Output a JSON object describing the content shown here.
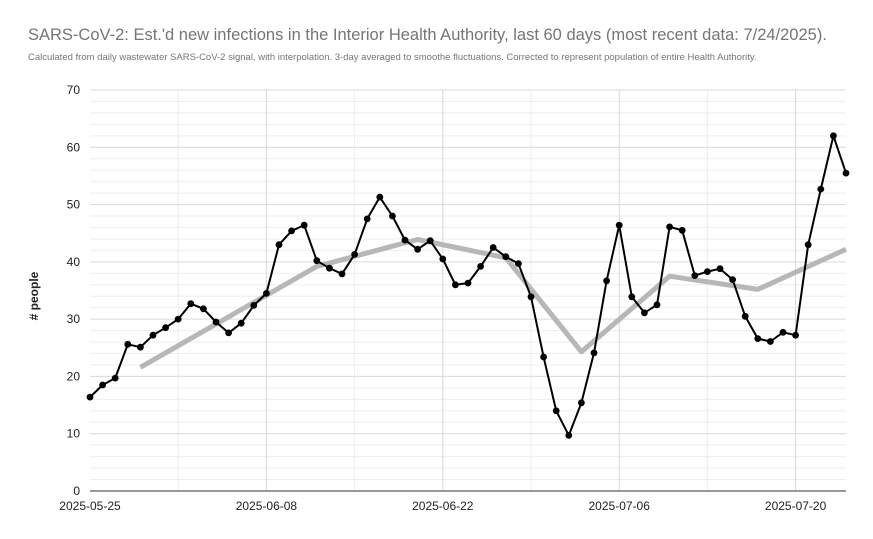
{
  "chart_data": {
    "type": "line",
    "title": "SARS-CoV-2: Est.'d new infections in the Interior Health Authority, last 60 days (most recent data: 7/24/2025).",
    "subtitle": "Calculated from daily wastewater SARS-CoV-2 signal, with interpolation. 3-day averaged to smoothe fluctuations. Corrected to represent population of entire Health Authority.",
    "ylabel": "# people",
    "xlabel": "",
    "ylim": [
      0,
      70
    ],
    "yticks": [
      0,
      10,
      20,
      30,
      40,
      50,
      60,
      70
    ],
    "xlim": [
      "2025-05-25",
      "2025-07-24"
    ],
    "xticks": [
      "2025-05-25",
      "2025-06-08",
      "2025-06-22",
      "2025-07-06",
      "2025-07-20"
    ],
    "grid": true,
    "colors": {
      "daily": "#000000",
      "trend": "#b7b7b7",
      "grid": "#d9d9d9"
    },
    "series": [
      {
        "style": "line-with-markers",
        "x": [
          "2025-05-25",
          "2025-05-26",
          "2025-05-27",
          "2025-05-28",
          "2025-05-29",
          "2025-05-30",
          "2025-05-31",
          "2025-06-01",
          "2025-06-02",
          "2025-06-03",
          "2025-06-04",
          "2025-06-05",
          "2025-06-06",
          "2025-06-07",
          "2025-06-08",
          "2025-06-09",
          "2025-06-10",
          "2025-06-11",
          "2025-06-12",
          "2025-06-13",
          "2025-06-14",
          "2025-06-15",
          "2025-06-16",
          "2025-06-17",
          "2025-06-18",
          "2025-06-19",
          "2025-06-20",
          "2025-06-21",
          "2025-06-22",
          "2025-06-23",
          "2025-06-24",
          "2025-06-25",
          "2025-06-26",
          "2025-06-27",
          "2025-06-28",
          "2025-06-29",
          "2025-06-30",
          "2025-07-01",
          "2025-07-02",
          "2025-07-03",
          "2025-07-04",
          "2025-07-05",
          "2025-07-06",
          "2025-07-07",
          "2025-07-08",
          "2025-07-09",
          "2025-07-10",
          "2025-07-11",
          "2025-07-12",
          "2025-07-13",
          "2025-07-14",
          "2025-07-15",
          "2025-07-16",
          "2025-07-17",
          "2025-07-18",
          "2025-07-19",
          "2025-07-20",
          "2025-07-21",
          "2025-07-22",
          "2025-07-23",
          "2025-07-24"
        ],
        "values": [
          16.4,
          18.5,
          19.7,
          25.6,
          25.1,
          27.2,
          28.5,
          30.0,
          32.7,
          31.8,
          29.5,
          27.6,
          29.3,
          32.4,
          34.5,
          43.0,
          45.4,
          46.4,
          40.2,
          38.9,
          37.9,
          41.3,
          47.5,
          51.3,
          48.0,
          43.8,
          42.2,
          43.7,
          40.5,
          36.0,
          36.3,
          39.2,
          42.5,
          40.9,
          39.7,
          33.9,
          23.4,
          14.0,
          9.7,
          15.4,
          24.1,
          36.7,
          46.4,
          33.9,
          31.1,
          32.5,
          46.1,
          45.5,
          37.6,
          38.3,
          38.8,
          36.9,
          30.5,
          26.6,
          26.1,
          27.7,
          27.2,
          43.0,
          52.7,
          62.0,
          55.5
        ]
      },
      {
        "style": "thick-trend-line",
        "x": [
          "2025-05-29",
          "2025-06-12",
          "2025-06-20",
          "2025-06-27",
          "2025-07-03",
          "2025-07-10",
          "2025-07-17",
          "2025-07-24"
        ],
        "values": [
          21.6,
          39.2,
          43.9,
          40.7,
          24.3,
          37.5,
          35.2,
          42.2
        ]
      }
    ]
  }
}
